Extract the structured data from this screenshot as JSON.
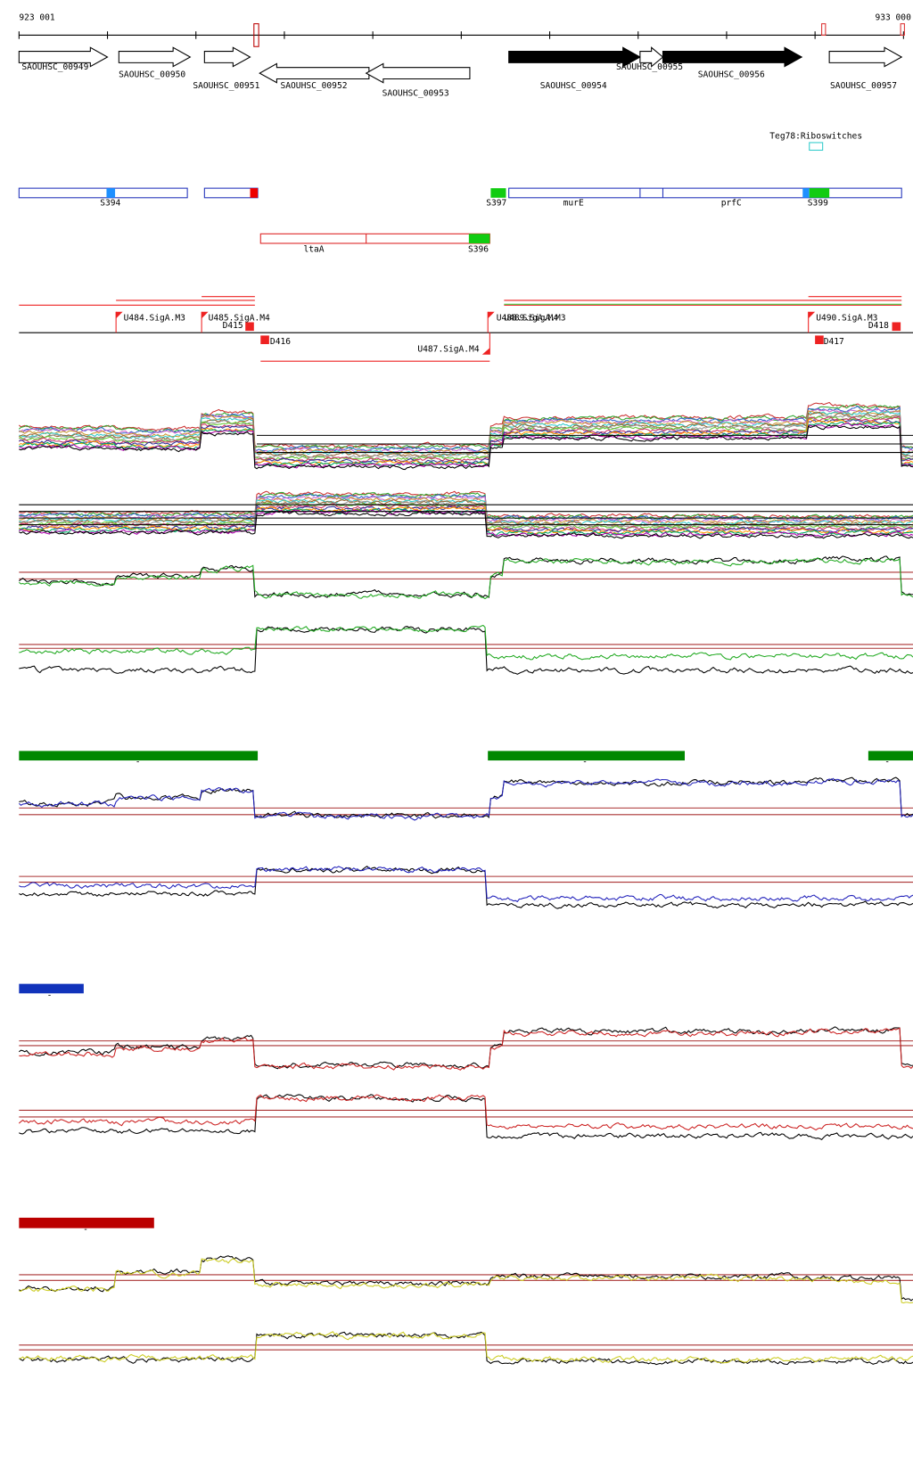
{
  "header": {
    "start": "923 001",
    "end": "933 000"
  },
  "genes": [
    "SAOUHSC_00949",
    "SAOUHSC_00950",
    "SAOUHSC_00951",
    "SAOUHSC_00952",
    "SAOUHSC_00953",
    "SAOUHSC_00954",
    "SAOUHSC_00955",
    "SAOUHSC_00956",
    "SAOUHSC_00957"
  ],
  "riboswitch": "Teg78:Riboswitches",
  "segments": [
    "S394",
    "S397",
    "murE",
    "prfC",
    "S399",
    "ltaA",
    "S396"
  ],
  "tss": [
    "U484.SigA.M3",
    "U485.SigA.M4",
    "D415",
    "D416",
    "U487.SigA.M4",
    "U488.SigA.M4",
    "U489.SigA.M3",
    "U490.SigA.M3",
    "D417",
    "D418"
  ],
  "track_labels": [
    "-",
    "-",
    "-",
    "-",
    "-"
  ]
}
